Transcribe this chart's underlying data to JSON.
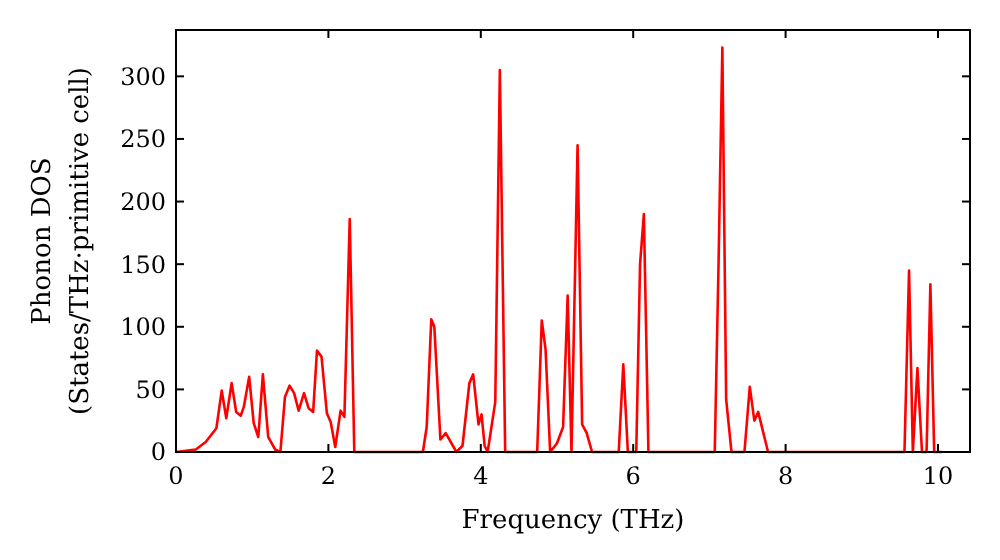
{
  "chart_data": {
    "type": "line",
    "xlabel": "Frequency (THz)",
    "ylabel": "Phonon DOS\n(States/THz·primitive cell)",
    "x": [
      0,
      0.26,
      0.39,
      0.53,
      0.6,
      0.66,
      0.73,
      0.79,
      0.85,
      0.89,
      0.96,
      1.02,
      1.08,
      1.14,
      1.21,
      1.3,
      1.37,
      1.43,
      1.49,
      1.55,
      1.61,
      1.68,
      1.74,
      1.8,
      1.85,
      1.91,
      1.98,
      2.03,
      2.09,
      2.16,
      2.21,
      2.28,
      2.34,
      3.24,
      3.29,
      3.35,
      3.39,
      3.47,
      3.54,
      3.68,
      3.76,
      3.85,
      3.9,
      3.97,
      4.01,
      4.05,
      4.09,
      4.19,
      4.25,
      4.32,
      4.74,
      4.8,
      4.85,
      4.91,
      5.0,
      5.08,
      5.14,
      5.19,
      5.27,
      5.33,
      5.39,
      5.46,
      5.81,
      5.87,
      5.93,
      6.04,
      6.09,
      6.14,
      6.2,
      7.07,
      7.12,
      7.17,
      7.22,
      7.29,
      7.46,
      7.53,
      7.59,
      7.64,
      7.77,
      9.56,
      9.62,
      9.67,
      9.73,
      9.79,
      9.85,
      9.9,
      9.95,
      10.05
    ],
    "series": [
      {
        "color": "#ff0000",
        "values": [
          0,
          2,
          8,
          19,
          49,
          27,
          55,
          32,
          29,
          36,
          60,
          23,
          12,
          62,
          12,
          2,
          0,
          44,
          53,
          47,
          33,
          47,
          35,
          32,
          81,
          76,
          31,
          24,
          4,
          33,
          28,
          186,
          0,
          0,
          20,
          106,
          100,
          10,
          15,
          0,
          5,
          55,
          62,
          22,
          30,
          5,
          0,
          40,
          305,
          0,
          0,
          105,
          82,
          0,
          7,
          20,
          125,
          0,
          245,
          22,
          15,
          0,
          0,
          70,
          0,
          0,
          150,
          190,
          0,
          0,
          150,
          323,
          42,
          0,
          0,
          52,
          25,
          32,
          0,
          0,
          145,
          0,
          67,
          0,
          0,
          134,
          0,
          0
        ]
      }
    ],
    "xlim": [
      0,
      10.42
    ],
    "ylim": [
      0,
      337
    ],
    "xticks": [
      0,
      2,
      4,
      6,
      8,
      10
    ],
    "yticks": [
      0,
      50,
      100,
      150,
      200,
      250,
      300
    ],
    "grid": false,
    "marker": "none",
    "line_style": "solid"
  }
}
